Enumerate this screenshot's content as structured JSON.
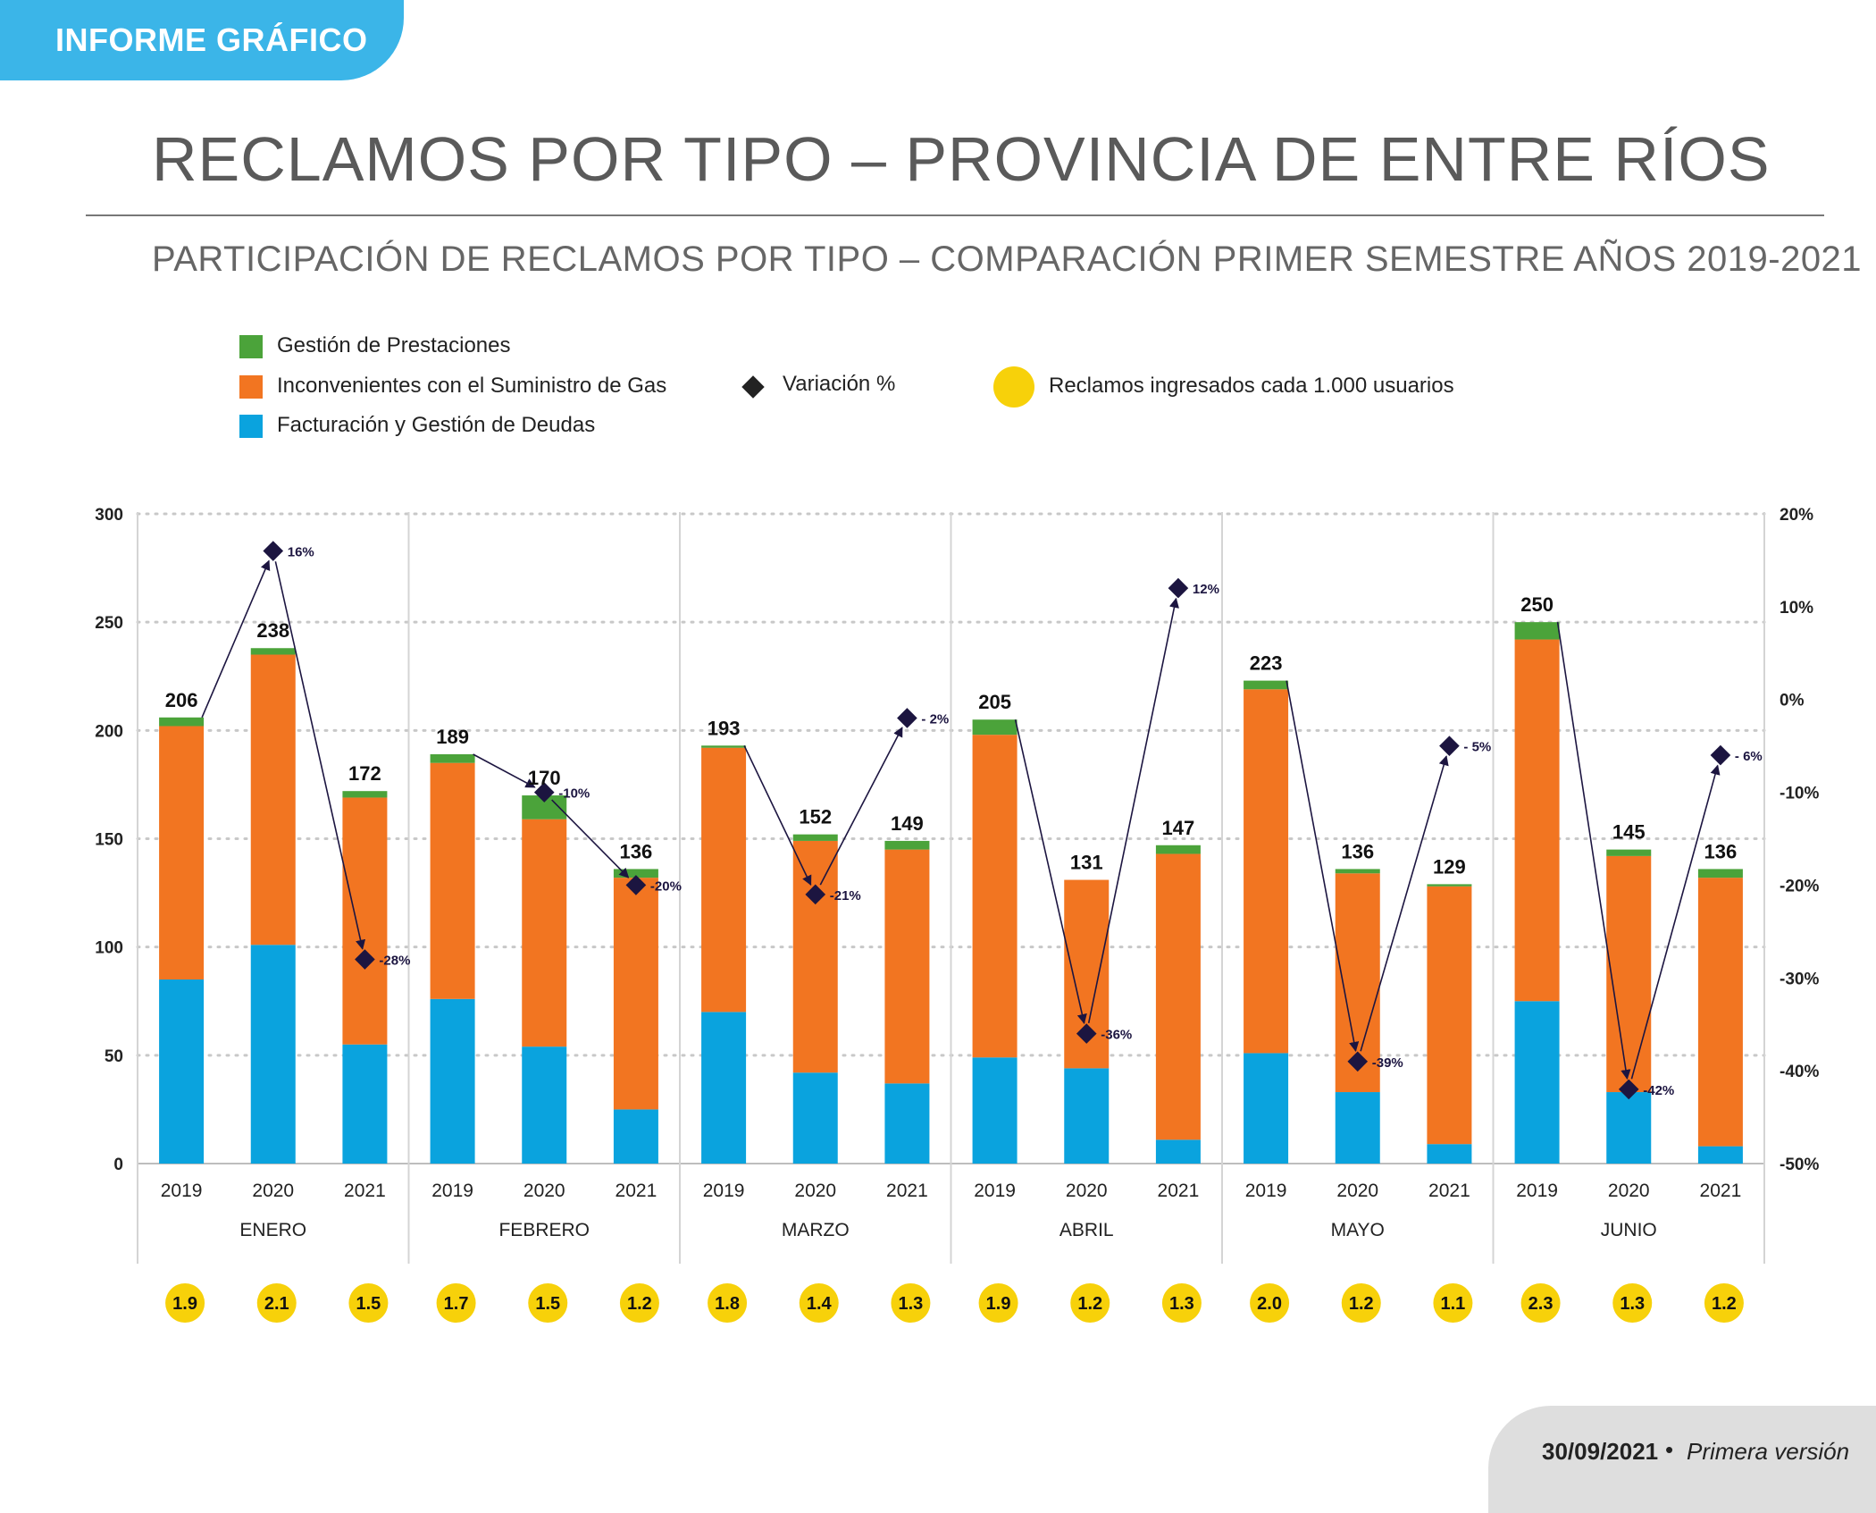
{
  "header": {
    "tag": "INFORME GRÁFICO"
  },
  "title": "RECLAMOS POR TIPO – PROVINCIA DE ENTRE RÍOS",
  "subtitle": "PARTICIPACIÓN DE RECLAMOS POR TIPO – COMPARACIÓN PRIMER SEMESTRE AÑOS 2019-2021",
  "legend": {
    "gestion": "Gestión de Prestaciones",
    "suministro": "Inconvenientes con el Suministro de Gas",
    "facturacion": "Facturación y Gestión de Deudas",
    "variacion": "Variación %",
    "reclamos_usuarios": "Reclamos ingresados cada 1.000 usuarios"
  },
  "colors": {
    "gestion": "#4ba33a",
    "suministro": "#f27521",
    "facturacion": "#0aa3de",
    "variacion": "#1c1540",
    "reclamos_usuarios": "#f7d10a"
  },
  "footer": {
    "date": "30/09/2021",
    "separator": "•",
    "version": "Primera versión"
  },
  "chart_data": {
    "type": "bar",
    "stacked": true,
    "months": [
      "ENERO",
      "FEBRERO",
      "MARZO",
      "ABRIL",
      "MAYO",
      "JUNIO"
    ],
    "years": [
      "2019",
      "2020",
      "2021"
    ],
    "y_left": {
      "ticks": [
        0,
        50,
        100,
        150,
        200,
        250,
        300
      ],
      "ylim": [
        0,
        300
      ]
    },
    "y_right": {
      "ticks": [
        "-50%",
        "-40%",
        "-30%",
        "-20%",
        "-10%",
        "0%",
        "10%",
        "20%"
      ],
      "ylim": [
        -50,
        20
      ]
    },
    "grid": "dotted",
    "series": [
      {
        "name": "Facturación y Gestión de Deudas",
        "values": [
          [
            85,
            101,
            55
          ],
          [
            76,
            54,
            25
          ],
          [
            70,
            42,
            37
          ],
          [
            49,
            44,
            11
          ],
          [
            51,
            33,
            9
          ],
          [
            75,
            33,
            8
          ]
        ]
      },
      {
        "name": "Inconvenientes con el Suministro de Gas",
        "values": [
          [
            117,
            134,
            114
          ],
          [
            109,
            105,
            107
          ],
          [
            122,
            107,
            108
          ],
          [
            149,
            87,
            132
          ],
          [
            168,
            101,
            119
          ],
          [
            167,
            109,
            124
          ]
        ]
      },
      {
        "name": "Gestión de Prestaciones",
        "values": [
          [
            4,
            3,
            3
          ],
          [
            4,
            11,
            4
          ],
          [
            1,
            3,
            4
          ],
          [
            7,
            0,
            4
          ],
          [
            4,
            2,
            1
          ],
          [
            8,
            3,
            4
          ]
        ]
      }
    ],
    "totals": [
      [
        206,
        238,
        172
      ],
      [
        189,
        170,
        136
      ],
      [
        193,
        152,
        149
      ],
      [
        205,
        131,
        147
      ],
      [
        223,
        136,
        129
      ],
      [
        250,
        145,
        136
      ]
    ],
    "variacion": {
      "values": [
        [
          null,
          16,
          -28
        ],
        [
          null,
          -10,
          -20
        ],
        [
          null,
          -21,
          -2
        ],
        [
          null,
          -36,
          12
        ],
        [
          null,
          -39,
          -5
        ],
        [
          null,
          -42,
          -6
        ]
      ],
      "labels": [
        [
          null,
          "16%",
          "-28%"
        ],
        [
          null,
          "-10%",
          "-20%"
        ],
        [
          null,
          "-21%",
          "- 2%"
        ],
        [
          null,
          "-36%",
          "12%"
        ],
        [
          null,
          "-39%",
          "- 5%"
        ],
        [
          null,
          "-42%",
          "- 6%"
        ]
      ]
    },
    "reclamos_cada_1000": [
      [
        "1.9",
        "2.1",
        "1.5"
      ],
      [
        "1.7",
        "1.5",
        "1.2"
      ],
      [
        "1.8",
        "1.4",
        "1.3"
      ],
      [
        "1.9",
        "1.2",
        "1.3"
      ],
      [
        "2.0",
        "1.2",
        "1.1"
      ],
      [
        "2.3",
        "1.3",
        "1.2"
      ]
    ]
  }
}
